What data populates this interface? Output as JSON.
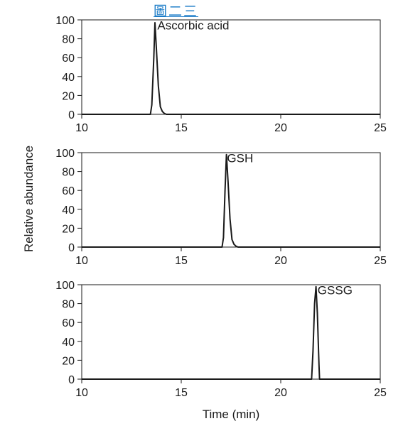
{
  "header": {
    "label": "圖二三"
  },
  "chart_data": {
    "type": "line",
    "xlabel": "Time (min)",
    "ylabel": "Relative abundance",
    "xlim": [
      10,
      25
    ],
    "ylim": [
      0,
      100
    ],
    "x_ticks": [
      10,
      15,
      20,
      25
    ],
    "y_ticks": [
      0,
      20,
      40,
      60,
      80,
      100
    ],
    "grid": false,
    "panels": [
      {
        "label": "Ascorbic acid",
        "label_x": 13.8,
        "label_y": 90,
        "series": [
          {
            "x": [
              10,
              13.45,
              13.52,
              13.62,
              13.68,
              13.75,
              13.85,
              13.95,
              14.05,
              14.15,
              14.25,
              25
            ],
            "y": [
              0,
              0,
              10,
              60,
              97,
              70,
              30,
              8,
              3,
              1,
              0,
              0
            ]
          }
        ]
      },
      {
        "label": "GSH",
        "label_x": 17.3,
        "label_y": 90,
        "series": [
          {
            "x": [
              10,
              17.05,
              17.12,
              17.2,
              17.27,
              17.35,
              17.45,
              17.55,
              17.65,
              17.75,
              17.85,
              25
            ],
            "y": [
              0,
              0,
              10,
              60,
              98,
              70,
              30,
              8,
              3,
              1,
              0,
              0
            ]
          }
        ]
      },
      {
        "label": "GSSG",
        "label_x": 21.85,
        "label_y": 90,
        "series": [
          {
            "x": [
              10,
              21.55,
              21.62,
              21.7,
              21.77,
              21.84,
              21.92,
              21.95,
              22,
              25
            ],
            "y": [
              0,
              0,
              30,
              80,
              98,
              70,
              15,
              0,
              0,
              0
            ]
          }
        ]
      }
    ]
  }
}
